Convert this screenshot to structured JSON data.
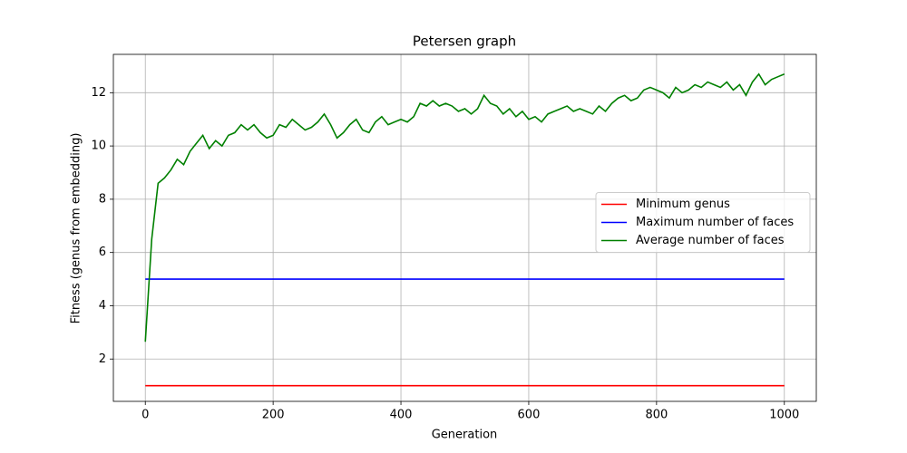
{
  "chart_data": {
    "type": "line",
    "title": "Petersen graph",
    "xlabel": "Generation",
    "ylabel": "Fitness (genus from embedding)",
    "xlim": [
      -50,
      1050
    ],
    "ylim": [
      0.41,
      13.44
    ],
    "xticks": [
      0,
      200,
      400,
      600,
      800,
      1000
    ],
    "yticks": [
      2,
      4,
      6,
      8,
      10,
      12
    ],
    "grid": true,
    "legend": "center right",
    "series": [
      {
        "name": "Minimum genus",
        "color": "#ff0000",
        "x": [
          0,
          1000
        ],
        "values": [
          1,
          1
        ]
      },
      {
        "name": "Maximum number of faces",
        "color": "#0000ff",
        "x": [
          0,
          1000
        ],
        "values": [
          5,
          5
        ]
      },
      {
        "name": "Average number of faces",
        "color": "#008000",
        "x": [
          0,
          10,
          20,
          30,
          40,
          50,
          60,
          70,
          80,
          90,
          100,
          110,
          120,
          130,
          140,
          150,
          160,
          170,
          180,
          190,
          200,
          210,
          220,
          230,
          240,
          250,
          260,
          270,
          280,
          290,
          300,
          310,
          320,
          330,
          340,
          350,
          360,
          370,
          380,
          390,
          400,
          410,
          420,
          430,
          440,
          450,
          460,
          470,
          480,
          490,
          500,
          510,
          520,
          530,
          540,
          550,
          560,
          570,
          580,
          590,
          600,
          610,
          620,
          630,
          640,
          650,
          660,
          670,
          680,
          690,
          700,
          710,
          720,
          730,
          740,
          750,
          760,
          770,
          780,
          790,
          800,
          810,
          820,
          830,
          840,
          850,
          860,
          870,
          880,
          890,
          900,
          910,
          920,
          930,
          940,
          950,
          960,
          970,
          980,
          990,
          1000
        ],
        "values": [
          2.65,
          6.5,
          8.6,
          8.8,
          9.1,
          9.5,
          9.3,
          9.8,
          10.1,
          10.4,
          9.9,
          10.2,
          10.0,
          10.4,
          10.5,
          10.8,
          10.6,
          10.8,
          10.5,
          10.3,
          10.4,
          10.8,
          10.7,
          11.0,
          10.8,
          10.6,
          10.7,
          10.9,
          11.2,
          10.8,
          10.3,
          10.5,
          10.8,
          11.0,
          10.6,
          10.5,
          10.9,
          11.1,
          10.8,
          10.9,
          11.0,
          10.9,
          11.1,
          11.6,
          11.5,
          11.7,
          11.5,
          11.6,
          11.5,
          11.3,
          11.4,
          11.2,
          11.4,
          11.9,
          11.6,
          11.5,
          11.2,
          11.4,
          11.1,
          11.3,
          11.0,
          11.1,
          10.9,
          11.2,
          11.3,
          11.4,
          11.5,
          11.3,
          11.4,
          11.3,
          11.2,
          11.5,
          11.3,
          11.6,
          11.8,
          11.9,
          11.7,
          11.8,
          12.1,
          12.2,
          12.1,
          12.0,
          11.8,
          12.2,
          12.0,
          12.1,
          12.3,
          12.2,
          12.4,
          12.3,
          12.2,
          12.4,
          12.1,
          12.3,
          11.9,
          12.4,
          12.7,
          12.3,
          12.5,
          12.6,
          12.7
        ]
      }
    ]
  }
}
